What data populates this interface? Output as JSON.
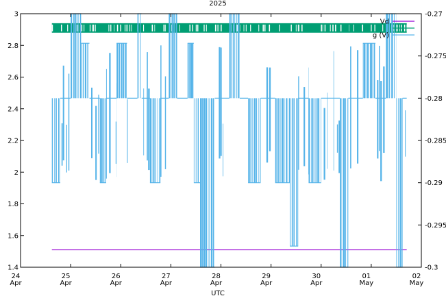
{
  "chart_data": {
    "type": "line",
    "title": "2025",
    "xlabel": "UTC",
    "x_ticks": [
      {
        "day": "24",
        "month": "Apr"
      },
      {
        "day": "25",
        "month": "Apr"
      },
      {
        "day": "26",
        "month": "Apr"
      },
      {
        "day": "27",
        "month": "Apr"
      },
      {
        "day": "28",
        "month": "Apr"
      },
      {
        "day": "29",
        "month": "Apr"
      },
      {
        "day": "30",
        "month": "Apr"
      },
      {
        "day": "01",
        "month": "May"
      },
      {
        "day": "02",
        "month": "May"
      }
    ],
    "x_range": [
      "2025-04-24 00:00",
      "2025-05-02 00:00"
    ],
    "y_left": {
      "range": [
        1.4,
        3.0
      ],
      "ticks": [
        "1.4",
        "1.6",
        "1.8",
        "2",
        "2.2",
        "2.4",
        "2.6",
        "2.8",
        "3"
      ]
    },
    "y_right": {
      "range": [
        -0.3,
        -0.27
      ],
      "ticks": [
        "-0.3",
        "-0.295",
        "-0.29",
        "-0.285",
        "-0.28",
        "-0.275",
        "-0.27"
      ]
    },
    "legend_position": "top-right",
    "legend": [
      {
        "label": "Vd",
        "color": "#9400d3"
      },
      {
        "label": "",
        "color": "#009e73"
      },
      {
        "label": "g (V)",
        "color": "#56b4e9"
      }
    ],
    "series": [
      {
        "name": "Vd",
        "axis": "left",
        "color": "#9400d3",
        "points": [
          [
            "2025-04-24 15:00",
            1.51
          ],
          [
            "2025-05-01 17:00",
            1.51
          ]
        ]
      },
      {
        "name": "",
        "axis": "left",
        "color": "#009e73",
        "levels": [
          2.88,
          2.94
        ],
        "band": [
          "2025-04-24 15:00",
          "2025-05-01 17:00"
        ]
      },
      {
        "name": "g (V)",
        "axis": "right",
        "color": "#56b4e9",
        "levels": [
          -0.3,
          -0.2975,
          -0.29,
          -0.28,
          -0.2735,
          -0.27
        ],
        "base_level": -0.28,
        "range": [
          "2025-04-24 15:00",
          "2025-05-01 17:00"
        ],
        "step_segments": [
          {
            "from": "2025-04-24 15:00",
            "to": "2025-04-24 19:00",
            "level": -0.29
          },
          {
            "from": "2025-04-24 19:00",
            "to": "2025-04-25 00:00",
            "level": -0.28
          },
          {
            "from": "2025-04-25 00:00",
            "to": "2025-04-25 05:00",
            "level": -0.27
          },
          {
            "from": "2025-04-25 05:00",
            "to": "2025-04-25 09:00",
            "level": -0.2735
          },
          {
            "from": "2025-04-25 09:00",
            "to": "2025-04-25 14:00",
            "level": -0.28
          },
          {
            "from": "2025-04-25 14:00",
            "to": "2025-04-25 17:00",
            "level": -0.29
          },
          {
            "from": "2025-04-25 17:00",
            "to": "2025-04-25 22:00",
            "level": -0.28
          },
          {
            "from": "2025-04-25 22:00",
            "to": "2025-04-26 03:00",
            "level": -0.2735
          },
          {
            "from": "2025-04-26 03:00",
            "to": "2025-04-26 08:00",
            "level": -0.28
          },
          {
            "from": "2025-04-26 08:00",
            "to": "2025-04-26 10:00",
            "level": -0.27
          },
          {
            "from": "2025-04-26 10:00",
            "to": "2025-04-26 14:00",
            "level": -0.28
          },
          {
            "from": "2025-04-26 14:00",
            "to": "2025-04-26 19:00",
            "level": -0.29
          },
          {
            "from": "2025-04-26 19:00",
            "to": "2025-04-26 23:00",
            "level": -0.28
          },
          {
            "from": "2025-04-26 23:00",
            "to": "2025-04-27 03:00",
            "level": -0.27
          },
          {
            "from": "2025-04-27 03:00",
            "to": "2025-04-27 08:00",
            "level": -0.28
          },
          {
            "from": "2025-04-27 08:00",
            "to": "2025-04-27 11:00",
            "level": -0.2735
          },
          {
            "from": "2025-04-27 11:00",
            "to": "2025-04-27 14:00",
            "level": -0.29
          },
          {
            "from": "2025-04-27 14:00",
            "to": "2025-04-27 21:00",
            "level": -0.3
          },
          {
            "from": "2025-04-27 21:00",
            "to": "2025-04-28 04:00",
            "level": -0.28
          },
          {
            "from": "2025-04-28 04:00",
            "to": "2025-04-28 09:00",
            "level": -0.27
          },
          {
            "from": "2025-04-28 09:00",
            "to": "2025-04-28 13:00",
            "level": -0.28
          },
          {
            "from": "2025-04-28 13:00",
            "to": "2025-04-28 19:00",
            "level": -0.29
          },
          {
            "from": "2025-04-28 19:00",
            "to": "2025-04-29 02:00",
            "level": -0.28
          },
          {
            "from": "2025-04-29 02:00",
            "to": "2025-04-29 09:00",
            "level": -0.29
          },
          {
            "from": "2025-04-29 09:00",
            "to": "2025-04-29 13:00",
            "level": -0.2975
          },
          {
            "from": "2025-04-29 13:00",
            "to": "2025-04-29 18:00",
            "level": -0.28
          },
          {
            "from": "2025-04-29 18:00",
            "to": "2025-04-30 00:00",
            "level": -0.29
          },
          {
            "from": "2025-04-30 00:00",
            "to": "2025-04-30 09:00",
            "level": -0.28
          },
          {
            "from": "2025-04-30 09:00",
            "to": "2025-04-30 13:00",
            "level": -0.3
          },
          {
            "from": "2025-04-30 13:00",
            "to": "2025-04-30 20:00",
            "level": -0.28
          },
          {
            "from": "2025-04-30 20:00",
            "to": "2025-05-01 02:00",
            "level": -0.2735
          },
          {
            "from": "2025-05-01 02:00",
            "to": "2025-05-01 07:00",
            "level": -0.28
          },
          {
            "from": "2025-05-01 07:00",
            "to": "2025-05-01 12:00",
            "level": -0.27
          },
          {
            "from": "2025-05-01 12:00",
            "to": "2025-05-01 15:00",
            "level": -0.3
          },
          {
            "from": "2025-05-01 15:00",
            "to": "2025-05-01 17:00",
            "level": -0.28
          }
        ]
      }
    ]
  }
}
